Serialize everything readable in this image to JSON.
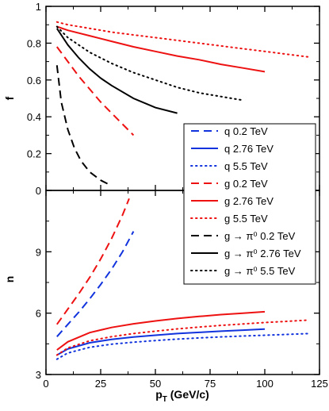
{
  "chart_data": [
    {
      "panel": "top",
      "type": "line",
      "ylabel": "f",
      "xlim": [
        0,
        125
      ],
      "ylim": [
        0,
        1
      ],
      "x_ticks": [
        "0",
        "25",
        "50",
        "75",
        "100",
        "125"
      ],
      "y_ticks": [
        "0",
        "0.2",
        "0.4",
        "0.6",
        "0.8",
        "1"
      ],
      "y_tick_values": [
        0,
        0.2,
        0.4,
        0.6,
        0.8,
        1
      ],
      "series": [
        {
          "name": "g 0.2 TeV",
          "color": "#ee1111",
          "dash": "dashed",
          "x": [
            5,
            10,
            15,
            20,
            25,
            30,
            35,
            40
          ],
          "y": [
            0.78,
            0.7,
            0.62,
            0.55,
            0.48,
            0.42,
            0.36,
            0.3
          ]
        },
        {
          "name": "g 2.76 TeV",
          "color": "#ee1111",
          "dash": "solid",
          "x": [
            5,
            10,
            20,
            30,
            40,
            50,
            60,
            70,
            80,
            90,
            100
          ],
          "y": [
            0.89,
            0.87,
            0.84,
            0.81,
            0.78,
            0.755,
            0.73,
            0.71,
            0.685,
            0.665,
            0.645
          ]
        },
        {
          "name": "g 5.5 TeV",
          "color": "#ee1111",
          "dash": "dotted",
          "x": [
            5,
            10,
            20,
            30,
            40,
            50,
            60,
            70,
            80,
            90,
            100,
            110,
            120
          ],
          "y": [
            0.915,
            0.9,
            0.88,
            0.86,
            0.845,
            0.83,
            0.815,
            0.8,
            0.785,
            0.77,
            0.755,
            0.74,
            0.725
          ]
        },
        {
          "name": "g → π⁰ 0.2 TeV",
          "color": "#000000",
          "dash": "dashed",
          "x": [
            5,
            7,
            10,
            13,
            16,
            20,
            25,
            30
          ],
          "y": [
            0.68,
            0.48,
            0.33,
            0.23,
            0.16,
            0.1,
            0.055,
            0.025
          ]
        },
        {
          "name": "g → π⁰ 2.76 TeV",
          "color": "#000000",
          "dash": "solid",
          "x": [
            5,
            10,
            15,
            20,
            25,
            30,
            40,
            50,
            60
          ],
          "y": [
            0.88,
            0.79,
            0.72,
            0.66,
            0.61,
            0.57,
            0.5,
            0.45,
            0.42
          ]
        },
        {
          "name": "g → π⁰ 5.5 TeV",
          "color": "#000000",
          "dash": "dotted",
          "x": [
            5,
            10,
            20,
            30,
            40,
            50,
            60,
            70,
            80,
            90
          ],
          "y": [
            0.89,
            0.83,
            0.75,
            0.69,
            0.64,
            0.6,
            0.56,
            0.53,
            0.51,
            0.49
          ]
        }
      ]
    },
    {
      "panel": "bottom",
      "type": "line",
      "xlabel": "p",
      "xlabel_sub": "T",
      "xlabel_suffix": " (GeV/c)",
      "ylabel": "n",
      "xlim": [
        0,
        125
      ],
      "ylim": [
        3,
        12
      ],
      "x_ticks": [
        "0",
        "25",
        "50",
        "75",
        "100",
        "125"
      ],
      "y_ticks": [
        "3",
        "6",
        "9"
      ],
      "y_tick_values": [
        3,
        6,
        9
      ],
      "series": [
        {
          "name": "q 0.2 TeV",
          "color": "#1133dd",
          "dash": "dashed",
          "x": [
            5,
            10,
            15,
            20,
            25,
            30,
            35,
            40
          ],
          "y": [
            4.85,
            5.45,
            6.05,
            6.7,
            7.4,
            8.15,
            9.0,
            10.0
          ]
        },
        {
          "name": "q 2.76 TeV",
          "color": "#1133dd",
          "dash": "solid",
          "x": [
            5,
            10,
            20,
            30,
            40,
            50,
            60,
            70,
            80,
            90,
            100
          ],
          "y": [
            3.95,
            4.25,
            4.55,
            4.72,
            4.83,
            4.92,
            5.0,
            5.06,
            5.12,
            5.17,
            5.22
          ]
        },
        {
          "name": "q 5.5 TeV",
          "color": "#1133dd",
          "dash": "dotted",
          "x": [
            5,
            10,
            20,
            30,
            40,
            50,
            60,
            70,
            80,
            90,
            100,
            110,
            120
          ],
          "y": [
            3.75,
            4.05,
            4.33,
            4.48,
            4.58,
            4.66,
            4.73,
            4.79,
            4.84,
            4.88,
            4.92,
            4.96,
            5.0
          ]
        },
        {
          "name": "g 0.2 TeV",
          "color": "#ee1111",
          "dash": "dashed",
          "x": [
            5,
            10,
            15,
            20,
            25,
            30,
            35,
            38
          ],
          "y": [
            5.45,
            6.2,
            6.95,
            7.75,
            8.65,
            9.65,
            10.8,
            11.6
          ]
        },
        {
          "name": "g 2.76 TeV",
          "color": "#ee1111",
          "dash": "solid",
          "x": [
            5,
            10,
            20,
            30,
            40,
            50,
            60,
            70,
            80,
            90,
            100
          ],
          "y": [
            4.2,
            4.6,
            5.05,
            5.3,
            5.48,
            5.62,
            5.74,
            5.84,
            5.93,
            6.0,
            6.07
          ]
        },
        {
          "name": "g 5.5 TeV",
          "color": "#ee1111",
          "dash": "dotted",
          "x": [
            5,
            10,
            20,
            30,
            40,
            50,
            60,
            70,
            80,
            90,
            100,
            110,
            120
          ],
          "y": [
            3.95,
            4.3,
            4.65,
            4.85,
            5.0,
            5.12,
            5.23,
            5.32,
            5.4,
            5.47,
            5.54,
            5.6,
            5.66
          ]
        }
      ]
    }
  ],
  "legend": {
    "entries": [
      {
        "label": "q 0.2 TeV",
        "color": "#1133dd",
        "dash": "dashed"
      },
      {
        "label": "q 2.76 TeV",
        "color": "#1133dd",
        "dash": "solid"
      },
      {
        "label": "q 5.5 TeV",
        "color": "#1133dd",
        "dash": "dotted"
      },
      {
        "label": "g 0.2 TeV",
        "color": "#ee1111",
        "dash": "dashed"
      },
      {
        "label": "g 2.76 TeV",
        "color": "#ee1111",
        "dash": "solid"
      },
      {
        "label": "g 5.5 TeV",
        "color": "#ee1111",
        "dash": "dotted"
      },
      {
        "label": "g → π⁰ 0.2 TeV",
        "color": "#000000",
        "dash": "dashed"
      },
      {
        "label": "g → π⁰ 2.76 TeV",
        "color": "#000000",
        "dash": "solid"
      },
      {
        "label": "g → π⁰ 5.5 TeV",
        "color": "#000000",
        "dash": "dotted"
      }
    ]
  }
}
